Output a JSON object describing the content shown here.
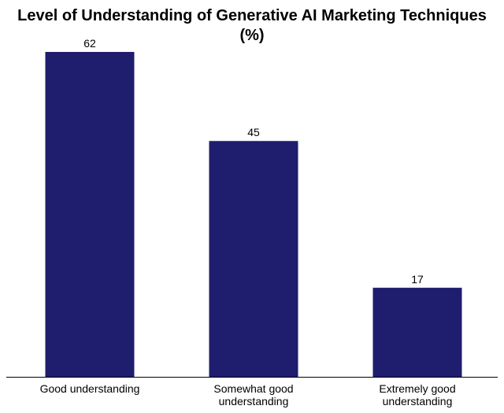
{
  "chart_data": {
    "type": "bar",
    "title_line1": "Level of Understanding of Generative AI Marketing Techniques",
    "title_line2": "(%)",
    "categories": [
      [
        "Good understanding"
      ],
      [
        "Somewhat good",
        "understanding"
      ],
      [
        "Extremely good",
        "understanding"
      ]
    ],
    "values": [
      62,
      45,
      17
    ],
    "xlabel": "",
    "ylabel": "",
    "ylim": [
      0,
      62
    ],
    "grid": false,
    "legend": "none",
    "bar_color": "#1f1d6e",
    "label_color": "#000000",
    "axis_color": "#000000"
  }
}
